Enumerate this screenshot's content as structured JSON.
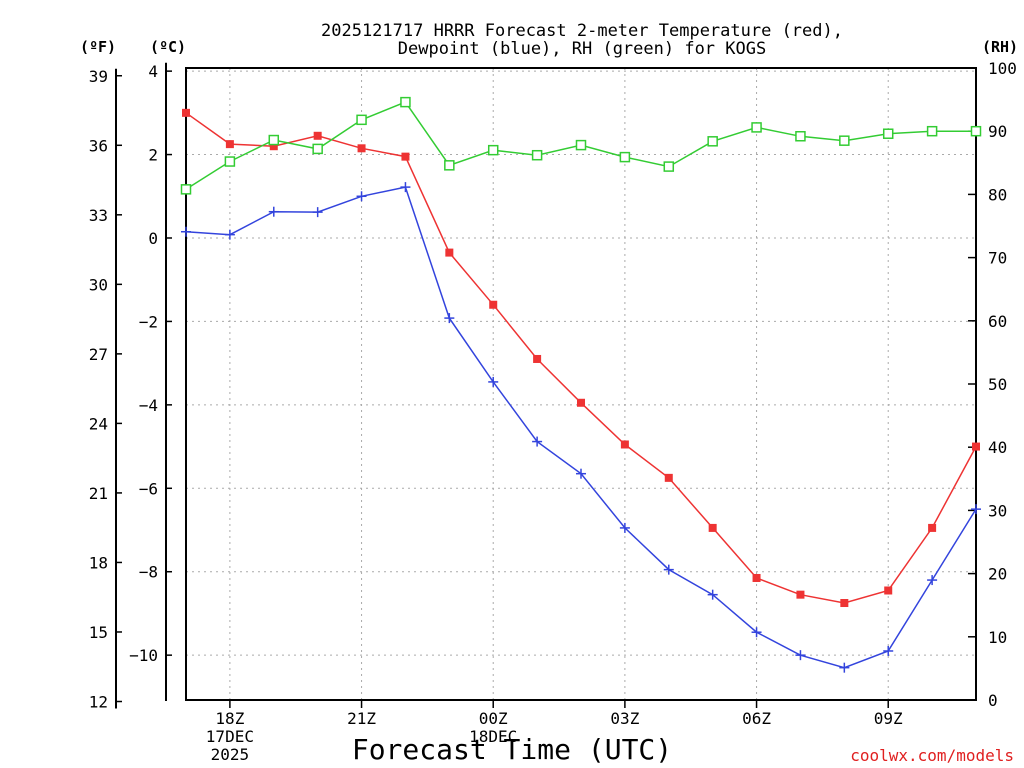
{
  "chart_data": {
    "type": "line",
    "title_lines": [
      "2025121717 HRRR Forecast 2-meter Temperature (red),",
      "Dewpoint (blue), RH (green) for KOGS"
    ],
    "xlabel": "Forecast Time (UTC)",
    "credit": "coolwx.com/models",
    "unit_labels": {
      "fahrenheit": "(ºF)",
      "celsius": "(ºC)",
      "rh": "(RH)"
    },
    "x_range_hours": [
      17,
      35
    ],
    "x_ticks": [
      {
        "hour": 18,
        "lines": [
          "18Z",
          "17DEC",
          "2025"
        ]
      },
      {
        "hour": 21,
        "lines": [
          "21Z"
        ]
      },
      {
        "hour": 24,
        "lines": [
          "00Z",
          "18DEC"
        ]
      },
      {
        "hour": 27,
        "lines": [
          "03Z"
        ]
      },
      {
        "hour": 30,
        "lines": [
          "06Z"
        ]
      },
      {
        "hour": 33,
        "lines": [
          "09Z"
        ]
      }
    ],
    "celsius_axis": {
      "range": [
        -11.075,
        4.075
      ],
      "ticks": [
        4,
        2,
        0,
        -2,
        -4,
        -6,
        -8,
        -10
      ],
      "tick_labels": [
        "4",
        "2",
        "0",
        "−2",
        "−4",
        "−6",
        "−8",
        "−10"
      ]
    },
    "fahrenheit_axis": {
      "ticks": [
        39,
        36,
        33,
        30,
        27,
        24,
        21,
        18,
        15,
        12
      ]
    },
    "rh_axis": {
      "range": [
        0,
        100
      ],
      "ticks": [
        100,
        90,
        80,
        70,
        60,
        50,
        40,
        30,
        20,
        10,
        0
      ]
    },
    "hours": [
      17,
      18,
      19,
      20,
      21,
      22,
      23,
      24,
      25,
      26,
      27,
      28,
      29,
      30,
      31,
      32,
      33,
      34,
      35
    ],
    "series": [
      {
        "name": "Temperature",
        "axis": "celsius",
        "color": "#ee3333",
        "marker": "filled-square",
        "values": [
          3.0,
          2.25,
          2.2,
          2.45,
          2.15,
          1.95,
          -0.35,
          -1.6,
          -2.9,
          -3.95,
          -4.95,
          -5.75,
          -6.95,
          -8.15,
          -8.55,
          -8.75,
          -8.45,
          -6.95,
          -5.0
        ]
      },
      {
        "name": "Dewpoint",
        "axis": "celsius",
        "color": "#3344dd",
        "marker": "plus",
        "values": [
          0.15,
          0.08,
          0.63,
          0.62,
          1.0,
          1.22,
          -1.92,
          -3.45,
          -4.88,
          -5.65,
          -6.95,
          -7.95,
          -8.55,
          -9.45,
          -10.0,
          -10.3,
          -9.9,
          -8.2,
          -6.5
        ]
      },
      {
        "name": "RH",
        "axis": "rh",
        "color": "#33cc33",
        "marker": "open-square",
        "values": [
          80.8,
          85.2,
          88.6,
          87.2,
          91.8,
          94.6,
          84.6,
          87.0,
          86.2,
          87.8,
          85.9,
          84.4,
          88.4,
          90.6,
          89.2,
          88.5,
          89.6,
          90.0,
          90.0
        ]
      }
    ]
  }
}
